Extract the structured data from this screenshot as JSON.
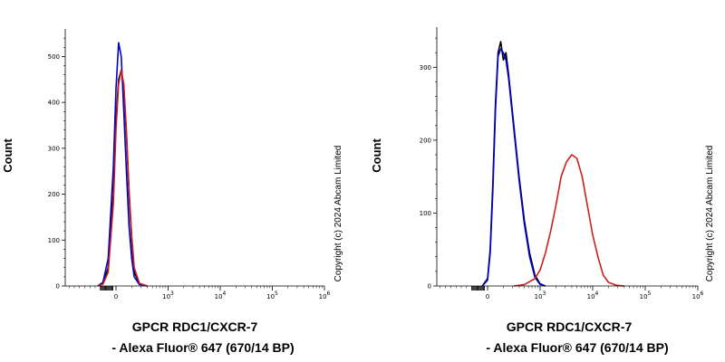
{
  "chart_data": [
    {
      "type": "line",
      "panel": "left",
      "xlabel_line1": "GPCR RDC1/CXCR-7",
      "xlabel_line2": "- Alexa Fluor® 647 (670/14 BP)",
      "ylabel": "Count",
      "copyright": "Copyright (c) 2024 Abcam Limited",
      "xlim": [
        -1.0,
        4.0
      ],
      "ylim": [
        0,
        560
      ],
      "x_ticks": [
        {
          "value": 0,
          "label": "0"
        },
        {
          "value": 1,
          "label": "10",
          "exp": "3"
        },
        {
          "value": 2,
          "label": "10",
          "exp": "4"
        },
        {
          "value": 3,
          "label": "10",
          "exp": "5"
        },
        {
          "value": 4,
          "label": "10",
          "exp": "6"
        }
      ],
      "y_ticks": [
        0,
        100,
        200,
        300,
        400,
        500
      ],
      "series": [
        {
          "color": "#000000",
          "x": [
            -0.35,
            -0.25,
            -0.15,
            -0.05,
            0.0,
            0.05,
            0.1,
            0.15,
            0.2,
            0.25,
            0.3,
            0.35,
            0.45,
            0.6
          ],
          "y": [
            0,
            5,
            40,
            200,
            360,
            450,
            470,
            430,
            330,
            200,
            100,
            30,
            5,
            0
          ]
        },
        {
          "color": "#0000cc",
          "x": [
            -0.35,
            -0.25,
            -0.15,
            -0.05,
            0.0,
            0.05,
            0.1,
            0.15,
            0.2,
            0.25,
            0.3,
            0.35,
            0.45,
            0.6
          ],
          "y": [
            0,
            8,
            60,
            260,
            430,
            530,
            500,
            380,
            250,
            130,
            60,
            20,
            3,
            0
          ]
        },
        {
          "color": "#cc1f1f",
          "x": [
            -0.35,
            -0.25,
            -0.15,
            -0.05,
            0.0,
            0.05,
            0.1,
            0.15,
            0.2,
            0.25,
            0.3,
            0.35,
            0.45,
            0.6
          ],
          "y": [
            0,
            4,
            30,
            180,
            340,
            440,
            470,
            440,
            340,
            210,
            110,
            40,
            6,
            0
          ]
        }
      ]
    },
    {
      "type": "line",
      "panel": "right",
      "xlabel_line1": "GPCR RDC1/CXCR-7",
      "xlabel_line2": "- Alexa Fluor® 647 (670/14 BP)",
      "ylabel": "Count",
      "copyright": "Copyright (c) 2024 Abcam Limited",
      "xlim": [
        -1.0,
        4.0
      ],
      "ylim": [
        0,
        355
      ],
      "x_ticks": [
        {
          "value": 0,
          "label": "0"
        },
        {
          "value": 1,
          "label": "10",
          "exp": "3"
        },
        {
          "value": 2,
          "label": "10",
          "exp": "4"
        },
        {
          "value": 3,
          "label": "10",
          "exp": "5"
        },
        {
          "value": 4,
          "label": "10",
          "exp": "6"
        }
      ],
      "y_ticks": [
        0,
        100,
        200,
        300
      ],
      "series": [
        {
          "color": "#000000",
          "x": [
            -0.1,
            0.0,
            0.05,
            0.1,
            0.15,
            0.2,
            0.25,
            0.3,
            0.35,
            0.4,
            0.5,
            0.6,
            0.7,
            0.8,
            0.9,
            1.0,
            1.1
          ],
          "y": [
            0,
            10,
            50,
            140,
            250,
            320,
            335,
            310,
            320,
            290,
            220,
            150,
            90,
            45,
            15,
            3,
            0
          ]
        },
        {
          "color": "#0000cc",
          "x": [
            -0.1,
            0.0,
            0.05,
            0.1,
            0.15,
            0.2,
            0.25,
            0.3,
            0.35,
            0.4,
            0.5,
            0.6,
            0.7,
            0.8,
            0.9,
            1.0,
            1.1
          ],
          "y": [
            0,
            8,
            45,
            130,
            240,
            315,
            325,
            320,
            310,
            285,
            215,
            145,
            85,
            40,
            12,
            2,
            0
          ]
        },
        {
          "color": "#cc1f1f",
          "x": [
            0.5,
            0.7,
            0.9,
            1.0,
            1.1,
            1.2,
            1.3,
            1.4,
            1.5,
            1.6,
            1.7,
            1.8,
            1.9,
            2.0,
            2.1,
            2.2,
            2.3,
            2.45,
            2.6
          ],
          "y": [
            0,
            2,
            10,
            22,
            45,
            75,
            110,
            150,
            170,
            180,
            175,
            150,
            110,
            70,
            40,
            15,
            5,
            1,
            0
          ]
        }
      ]
    }
  ]
}
